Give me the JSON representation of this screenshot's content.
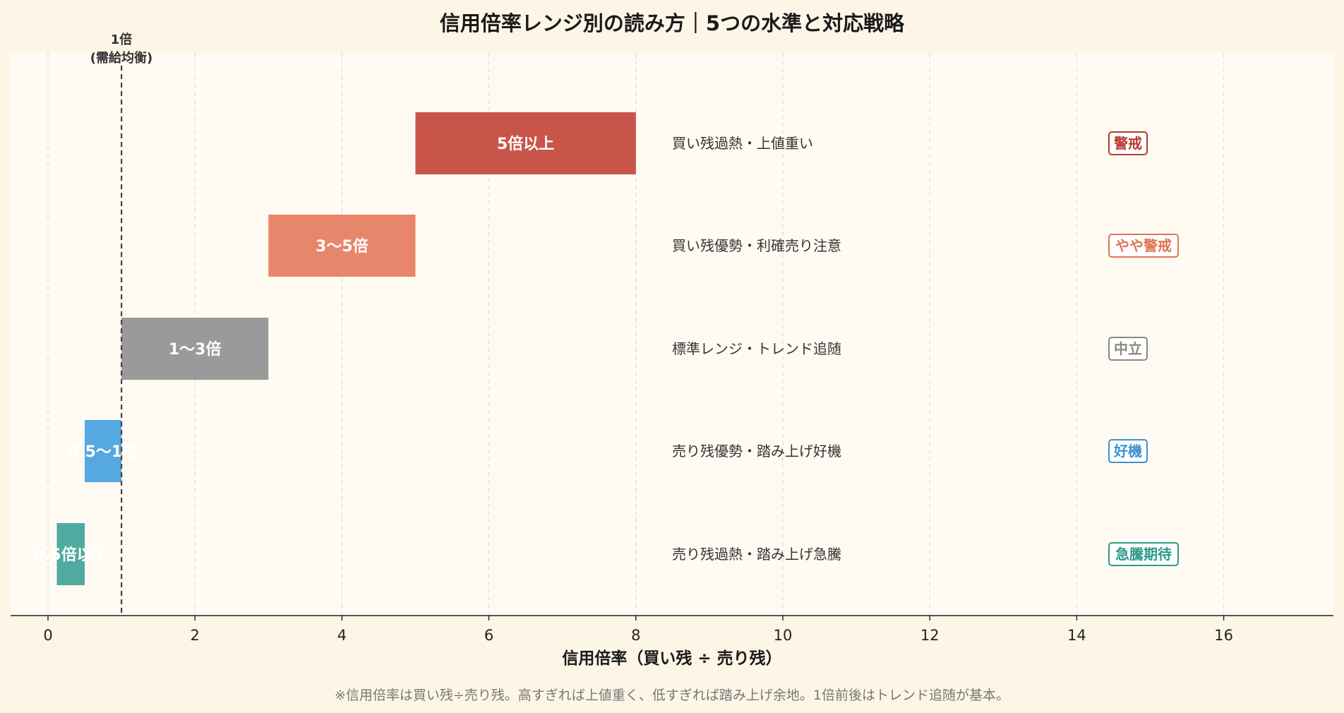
{
  "chart_data": {
    "type": "bar",
    "title": "信用倍率レンジ別の読み方｜5つの水準と対応戦略",
    "xlabel": "信用倍率（買い残 ÷ 売り残）",
    "xlim": [
      -0.5,
      17.5
    ],
    "x_ticks": [
      0,
      2,
      4,
      6,
      8,
      10,
      12,
      14,
      16
    ],
    "grid": "vertical dashed",
    "reference_line": {
      "x": 1,
      "label_line1": "1倍",
      "label_line2": "(需給均衡)"
    },
    "ranges": [
      {
        "label": "5倍以上",
        "start": 5,
        "end": 8,
        "color": "#c9544a",
        "description": "買い残過熱・上値重い",
        "badge": "警戒",
        "badge_color": "#b83a2e"
      },
      {
        "label": "3〜5倍",
        "start": 3,
        "end": 5,
        "color": "#e8866b",
        "description": "買い残優勢・利確売り注意",
        "badge": "やや警戒",
        "badge_color": "#e07454"
      },
      {
        "label": "1〜3倍",
        "start": 1,
        "end": 3,
        "color": "#9a9a9a",
        "description": "標準レンジ・トレンド追随",
        "badge": "中立",
        "badge_color": "#8a8a80"
      },
      {
        "label": "0.5〜1倍",
        "start": 0.5,
        "end": 1,
        "color": "#55a8e0",
        "description": "売り残優勢・踏み上げ好機",
        "badge": "好機",
        "badge_color": "#3b93d0"
      },
      {
        "label": "0.5倍以下",
        "start": 0.12,
        "end": 0.5,
        "color": "#4fab9f",
        "description": "売り残過熱・踏み上げ急騰",
        "badge": "急騰期待",
        "badge_color": "#2e9a88"
      }
    ]
  },
  "footnote": "※信用倍率は買い残÷売り残。高すぎれば上値重く、低すぎれば踏み上げ余地。1倍前後はトレンド追随が基本。"
}
